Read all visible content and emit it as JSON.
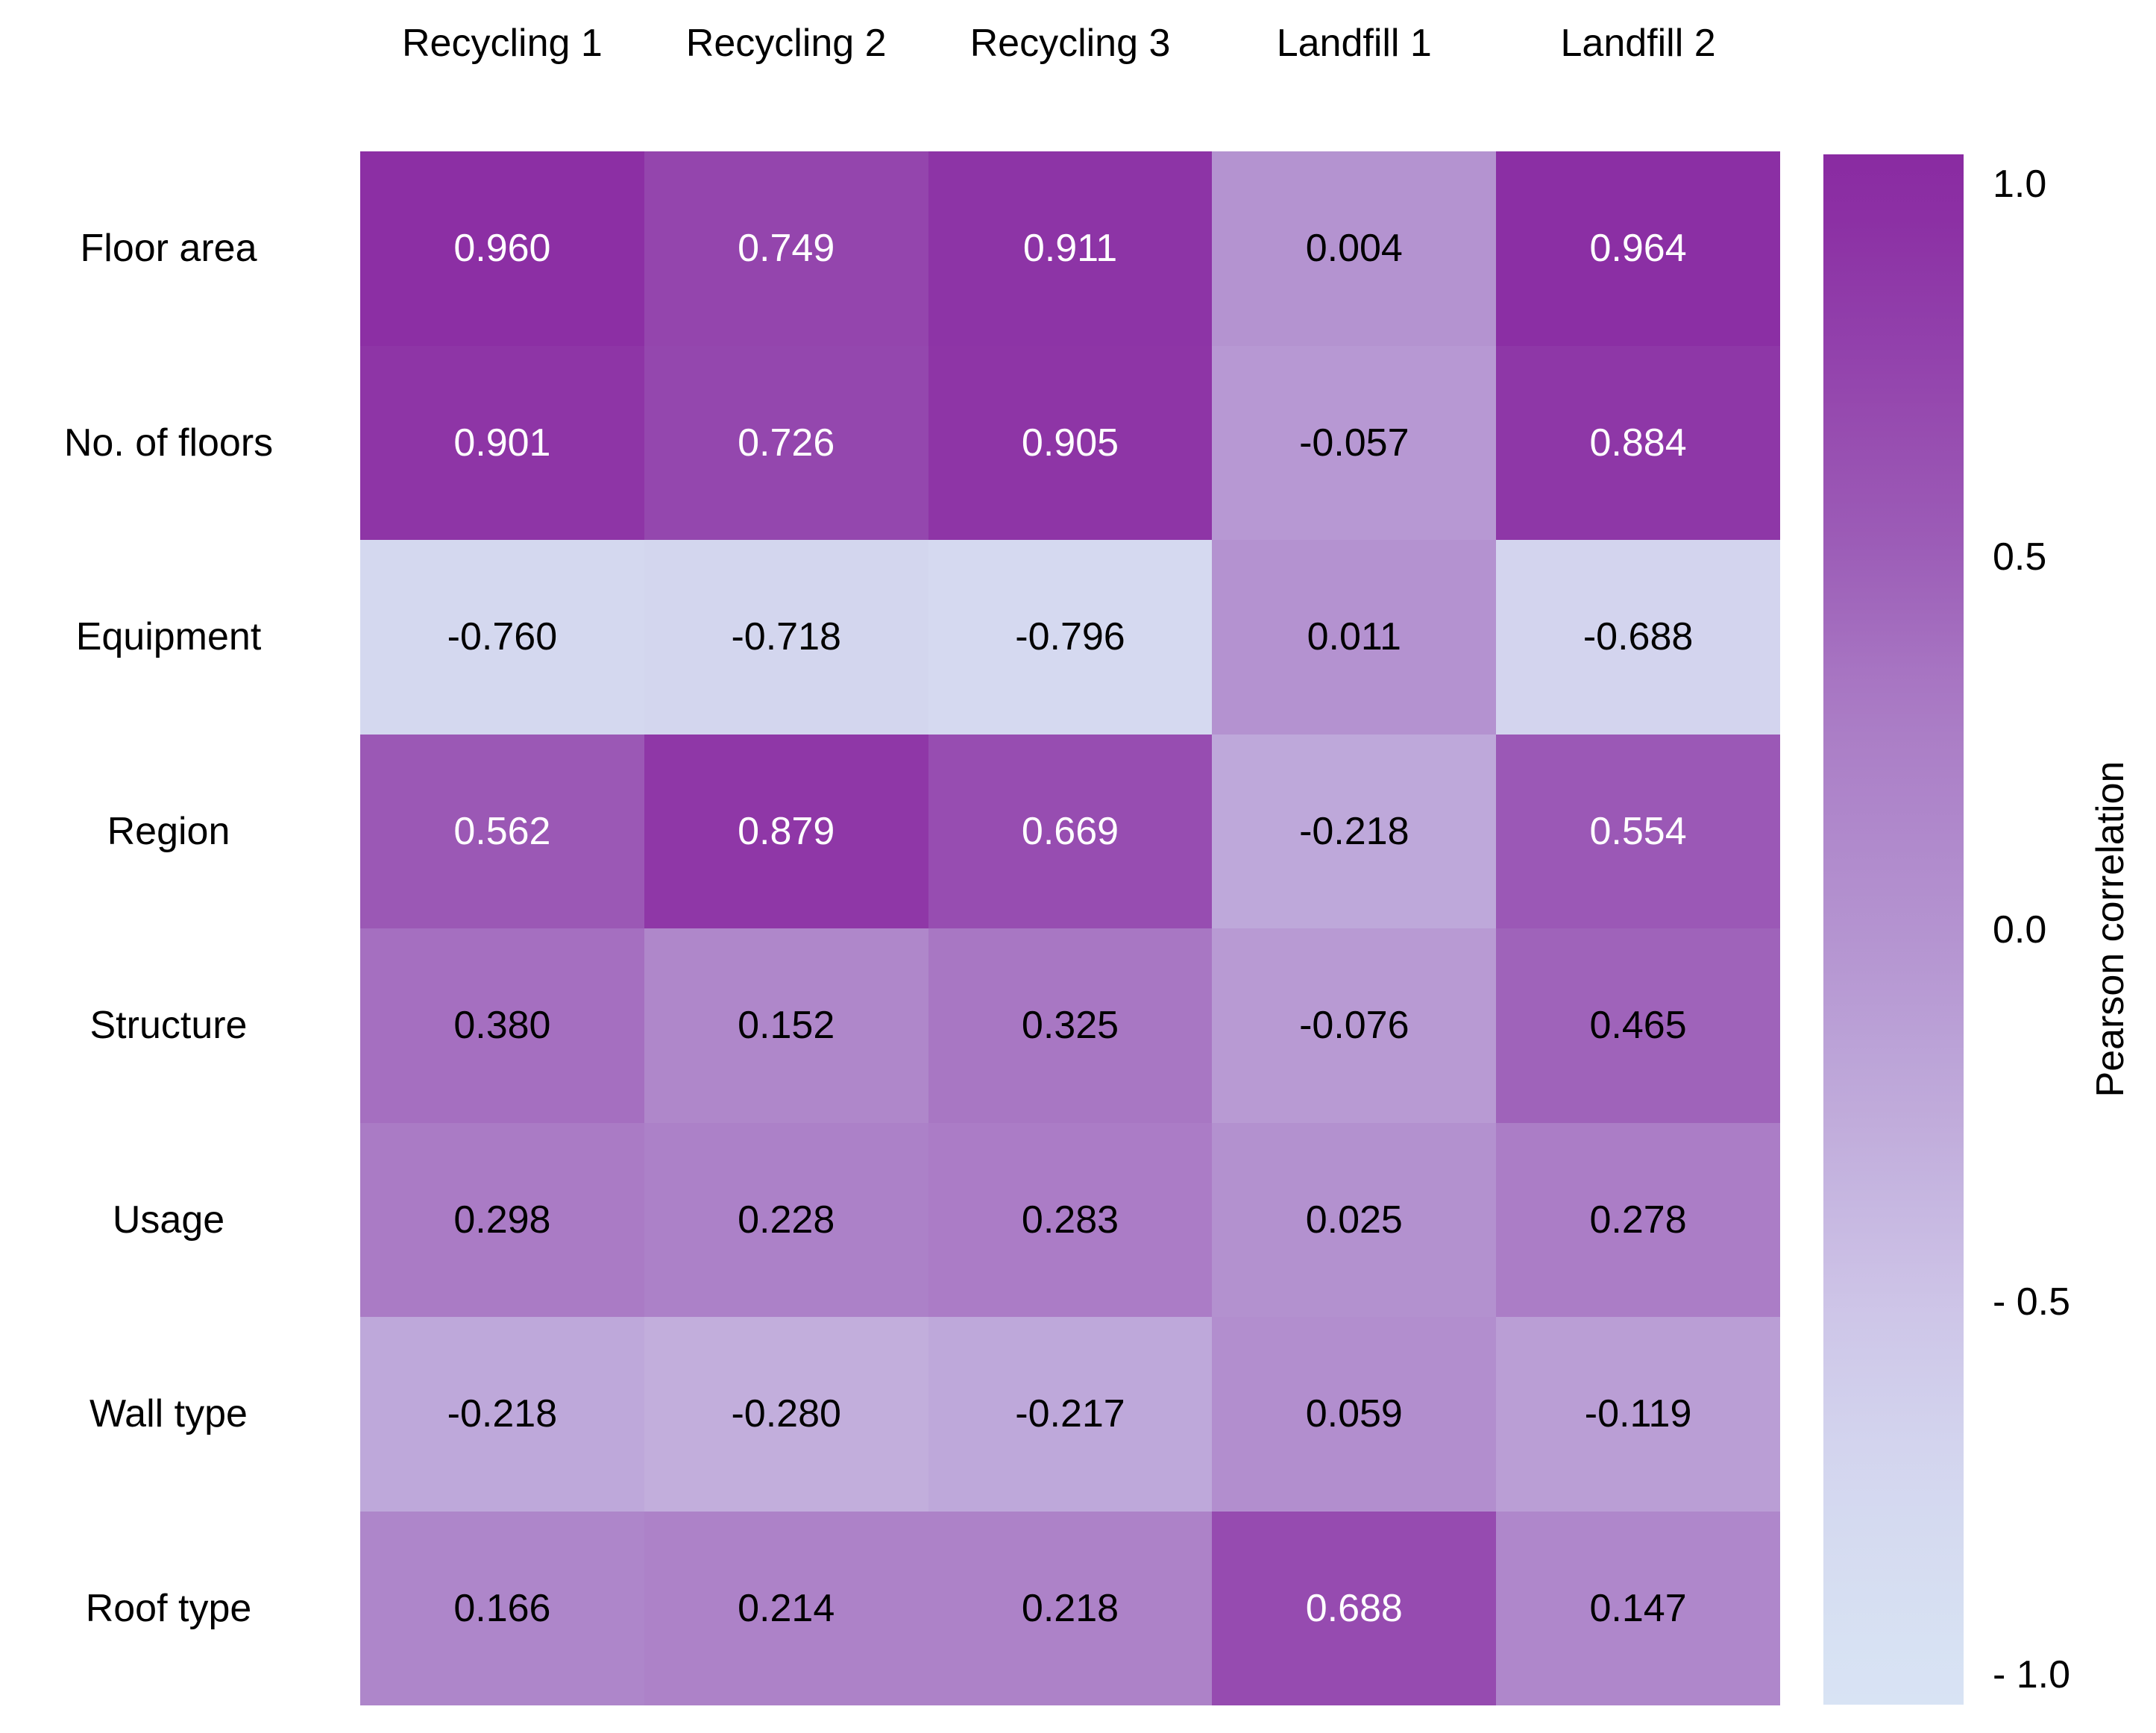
{
  "figure": {
    "background_color": "#ffffff"
  },
  "chart_data": {
    "type": "heatmap",
    "title": "",
    "columns": [
      "Recycling 1",
      "Recycling 2",
      "Recycling 3",
      "Landfill 1",
      "Landfill 2"
    ],
    "rows": [
      "Floor area",
      "No. of floors",
      "Equipment",
      "Region",
      "Structure",
      "Usage",
      "Wall type",
      "Roof type"
    ],
    "values": [
      [
        0.96,
        0.749,
        0.911,
        0.004,
        0.964
      ],
      [
        0.901,
        0.726,
        0.905,
        -0.057,
        0.884
      ],
      [
        -0.76,
        -0.718,
        -0.796,
        0.011,
        -0.688
      ],
      [
        0.562,
        0.879,
        0.669,
        -0.218,
        0.554
      ],
      [
        0.38,
        0.152,
        0.325,
        -0.076,
        0.465
      ],
      [
        0.298,
        0.228,
        0.283,
        0.025,
        0.278
      ],
      [
        -0.218,
        -0.28,
        -0.217,
        0.059,
        -0.119
      ],
      [
        0.166,
        0.214,
        0.218,
        0.688,
        0.147
      ]
    ],
    "value_decimals": 3,
    "grid": "off",
    "legend_position": "right-colorbar",
    "colorbar": {
      "label": "Pearson correlation",
      "tick_labels": [
        "1.0",
        "0.5",
        "0.0",
        "- 0.5",
        "- 1.0"
      ],
      "tick_values": [
        1.0,
        0.5,
        0.0,
        -0.5,
        -1.0
      ],
      "vmin": -1.0,
      "vmax": 1.0
    },
    "colormap_stops": [
      {
        "value": -1.0,
        "rgb": [
          216,
          227,
          244
        ]
      },
      {
        "value": -0.7,
        "rgb": [
          211,
          213,
          238
        ]
      },
      {
        "value": -0.5,
        "rgb": [
          205,
          196,
          231
        ]
      },
      {
        "value": -0.25,
        "rgb": [
          192,
          171,
          219
        ]
      },
      {
        "value": 0.0,
        "rgb": [
          180,
          147,
          208
        ]
      },
      {
        "value": 0.3,
        "rgb": [
          170,
          123,
          197
        ]
      },
      {
        "value": 0.5,
        "rgb": [
          157,
          94,
          184
        ]
      },
      {
        "value": 1.0,
        "rgb": [
          138,
          43,
          162
        ]
      }
    ],
    "cell_text": {
      "white_text_threshold": 0.5,
      "high_color": "#ffffff",
      "default_color": "#000000"
    }
  }
}
